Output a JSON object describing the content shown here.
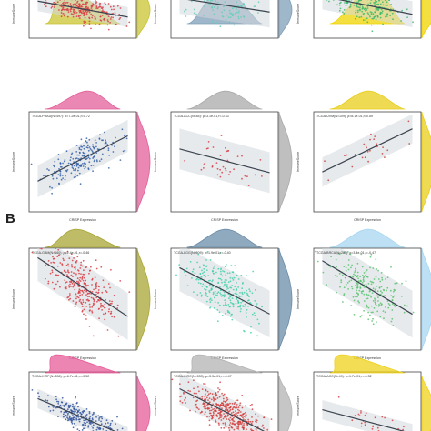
{
  "section_label": "B",
  "chart_data": [
    {
      "type": "scatter",
      "title": "",
      "xlabel": "",
      "ylabel": "ImmuneScore",
      "color": "#d9363e",
      "n": 260,
      "intercept": -300,
      "slope": -150,
      "spread": 420,
      "xlim": [
        -3,
        6
      ],
      "ylim": [
        -2600,
        900
      ],
      "marginal_color": "#c9c430",
      "density_peak": 0.25,
      "tail": "top"
    },
    {
      "type": "scatter",
      "title": "",
      "xlabel": "",
      "ylabel": "ImmuneScore",
      "color": "#5fcfb6",
      "n": 120,
      "intercept": -50,
      "slope": -130,
      "spread": 650,
      "xlim": [
        -3,
        6
      ],
      "ylim": [
        -2600,
        900
      ],
      "marginal_color": "#7f9fb8",
      "density_peak": 0.45,
      "tail": "top"
    },
    {
      "type": "scatter",
      "title": "",
      "xlabel": "",
      "ylabel": "ImmuneScore",
      "color": "#38b868",
      "n": 230,
      "intercept": 0,
      "slope": -170,
      "spread": 550,
      "xlim": [
        -3,
        6
      ],
      "ylim": [
        -2600,
        900
      ],
      "marginal_color": "#f0d400",
      "density_peak": 0.55,
      "tail": "top"
    },
    {
      "type": "scatter",
      "title": "TCGA-PRAD(N=497): ρ=7.2e-01,r=0.72",
      "xlabel": "CRISP Expression",
      "ylabel": "ImmuneScore",
      "color": "#2e5ca8",
      "n": 200,
      "intercept": -1050,
      "slope": 210,
      "spread": 330,
      "xlim": [
        -3,
        6
      ],
      "ylim": [
        -2600,
        900
      ],
      "marginal_color": "#e35f99",
      "density_peak": 0.55,
      "tail": "full"
    },
    {
      "type": "scatter",
      "title": "TCGA-ACC(N=84): ρ=3.1e-01,r=-0.33",
      "xlabel": "CRISP Expression",
      "ylabel": "ImmuneScore",
      "color": "#d9363e",
      "n": 40,
      "intercept": -650,
      "slope": -110,
      "spread": 420,
      "xlim": [
        -3,
        6
      ],
      "ylim": [
        -2600,
        900
      ],
      "marginal_color": "#a9a9a9",
      "density_peak": 0.5,
      "tail": "full"
    },
    {
      "type": "scatter",
      "title": "TCGA-UVM(N=109): ρ=8.1e-01,r=0.59",
      "xlabel": "CRISP Expression",
      "ylabel": "ImmuneScore",
      "color": "#c93838",
      "n": 26,
      "intercept": -750,
      "slope": 200,
      "spread": 300,
      "xlim": [
        -3,
        6
      ],
      "ylim": [
        -2600,
        900
      ],
      "marginal_color": "#e9cd1a",
      "density_peak": 0.5,
      "tail": "full"
    },
    {
      "type": "scatter",
      "title": "TCGA-GBM(N=160): ρ=2.4e-01,r=-0.46",
      "xlabel": "CRISP Expression",
      "ylabel": "ImmuneScore",
      "color": "#d9363e",
      "n": 300,
      "intercept": 900,
      "slope": -330,
      "spread": 650,
      "xlim": [
        -4,
        6
      ],
      "ylim": [
        -2400,
        2400
      ],
      "marginal_color": "#a9a535",
      "density_peak": 0.4,
      "tail": "full"
    },
    {
      "type": "scatter",
      "title": "TCGA-LGG(N=509): ρ=1.9e-01,r=-0.40",
      "xlabel": "CRISP Expression",
      "ylabel": "ImmuneScore",
      "color": "#3ccfa8",
      "n": 280,
      "intercept": 650,
      "slope": -260,
      "spread": 650,
      "xlim": [
        -4,
        6
      ],
      "ylim": [
        -2400,
        2400
      ],
      "marginal_color": "#6a8ca8",
      "density_peak": 0.5,
      "tail": "full"
    },
    {
      "type": "scatter",
      "title": "TCGA-BRCA(N=283): ρ=3.4e-01,r=-0.47",
      "xlabel": "CRISP Expression",
      "ylabel": "ImmuneScore",
      "color": "#54c16a",
      "n": 250,
      "intercept": 850,
      "slope": -300,
      "spread": 650,
      "xlim": [
        -4,
        6
      ],
      "ylim": [
        -2400,
        2400
      ],
      "marginal_color": "#a8d6f0",
      "density_peak": 0.5,
      "tail": "full"
    },
    {
      "type": "scatter",
      "title": "TCGA-KIRP(N=286): ρ=6.7e-11,r=-0.52",
      "xlabel": "",
      "ylabel": "ImmuneScore",
      "color": "#2a4e9a",
      "n": 240,
      "intercept": -500,
      "slope": -320,
      "spread": 400,
      "xlim": [
        -4,
        6
      ],
      "ylim": [
        -2400,
        2400
      ],
      "marginal_color": "#e75c9a",
      "density_peak": 0.15,
      "tail": "bottom"
    },
    {
      "type": "scatter",
      "title": "TCGA-KIRC(N=533): ρ=3.3e-01,r=-0.47",
      "xlabel": "",
      "ylabel": "ImmuneScore",
      "color": "#d33a3a",
      "n": 420,
      "intercept": 0,
      "slope": -380,
      "spread": 650,
      "xlim": [
        -4,
        6
      ],
      "ylim": [
        -2400,
        2400
      ],
      "marginal_color": "#b3b3b3",
      "density_peak": 0.15,
      "tail": "bottom"
    },
    {
      "type": "scatter",
      "title": "TCGA-ACC(N=49): ρ=1.7e-01,r=-0.32",
      "xlabel": "",
      "ylabel": "ImmuneScore",
      "color": "#d9363e",
      "n": 30,
      "intercept": -900,
      "slope": -200,
      "spread": 400,
      "xlim": [
        -4,
        6
      ],
      "ylim": [
        -2400,
        2400
      ],
      "marginal_color": "#efd21c",
      "density_peak": 0.15,
      "tail": "bottom"
    }
  ]
}
